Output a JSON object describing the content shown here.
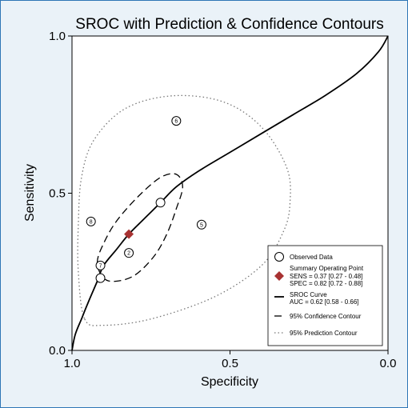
{
  "chart_data": {
    "type": "scatter",
    "title": "SROC with Prediction & Confidence Contours",
    "xlabel": "Specificity",
    "ylabel": "Sensitivity",
    "x_reversed": true,
    "xlim": [
      1.0,
      0.0
    ],
    "ylim": [
      0.0,
      1.0
    ],
    "x_ticks": [
      "1.0",
      "0.5",
      "0.0"
    ],
    "y_ticks": [
      "0.0",
      "0.5",
      "1.0"
    ],
    "observed_data": [
      {
        "label": "6",
        "x": 0.67,
        "y": 0.73
      },
      {
        "label": "",
        "x": 0.72,
        "y": 0.47
      },
      {
        "label": "5",
        "x": 0.59,
        "y": 0.4
      },
      {
        "label": "8",
        "x": 0.94,
        "y": 0.41
      },
      {
        "label": "2",
        "x": 0.82,
        "y": 0.31
      },
      {
        "label": "7",
        "x": 0.91,
        "y": 0.27
      },
      {
        "label": "",
        "x": 0.91,
        "y": 0.23
      }
    ],
    "summary_point": {
      "x": 0.82,
      "y": 0.37,
      "color": "#a83232"
    },
    "sroc_curve": [
      [
        1.0,
        0.0
      ],
      [
        0.99,
        0.05
      ],
      [
        0.97,
        0.1
      ],
      [
        0.95,
        0.15
      ],
      [
        0.92,
        0.22
      ],
      [
        0.9,
        0.27
      ],
      [
        0.86,
        0.32
      ],
      [
        0.82,
        0.37
      ],
      [
        0.77,
        0.42
      ],
      [
        0.72,
        0.47
      ],
      [
        0.67,
        0.52
      ],
      [
        0.6,
        0.57
      ],
      [
        0.5,
        0.63
      ],
      [
        0.4,
        0.69
      ],
      [
        0.3,
        0.75
      ],
      [
        0.2,
        0.81
      ],
      [
        0.1,
        0.88
      ],
      [
        0.03,
        0.95
      ],
      [
        0.0,
        1.0
      ]
    ],
    "confidence_contour": [
      [
        0.9,
        0.23
      ],
      [
        0.86,
        0.22
      ],
      [
        0.8,
        0.24
      ],
      [
        0.74,
        0.3
      ],
      [
        0.7,
        0.37
      ],
      [
        0.67,
        0.45
      ],
      [
        0.65,
        0.52
      ],
      [
        0.67,
        0.56
      ],
      [
        0.72,
        0.55
      ],
      [
        0.79,
        0.49
      ],
      [
        0.86,
        0.41
      ],
      [
        0.9,
        0.34
      ],
      [
        0.92,
        0.28
      ],
      [
        0.9,
        0.23
      ]
    ],
    "prediction_contour": [
      [
        0.96,
        0.1
      ],
      [
        0.9,
        0.08
      ],
      [
        0.75,
        0.1
      ],
      [
        0.55,
        0.17
      ],
      [
        0.4,
        0.27
      ],
      [
        0.33,
        0.38
      ],
      [
        0.31,
        0.47
      ],
      [
        0.32,
        0.58
      ],
      [
        0.4,
        0.71
      ],
      [
        0.52,
        0.79
      ],
      [
        0.68,
        0.81
      ],
      [
        0.83,
        0.77
      ],
      [
        0.93,
        0.67
      ],
      [
        0.97,
        0.55
      ],
      [
        0.98,
        0.4
      ],
      [
        0.98,
        0.25
      ],
      [
        0.96,
        0.1
      ]
    ],
    "legend": [
      {
        "label": "Observed Data"
      },
      {
        "label": "Summary Operating Point",
        "lines": [
          "SENS = 0.37 [0.27 - 0.48]",
          "SPEC = 0.82 [0.72 - 0.88]"
        ]
      },
      {
        "label": "SROC Curve",
        "lines": [
          "AUC = 0.62 [0.58 - 0.66]"
        ]
      },
      {
        "label": "95% Confidence Contour"
      },
      {
        "label": "95% Prediction Contour"
      }
    ],
    "legend_position": "bottom-right",
    "grid": false
  }
}
